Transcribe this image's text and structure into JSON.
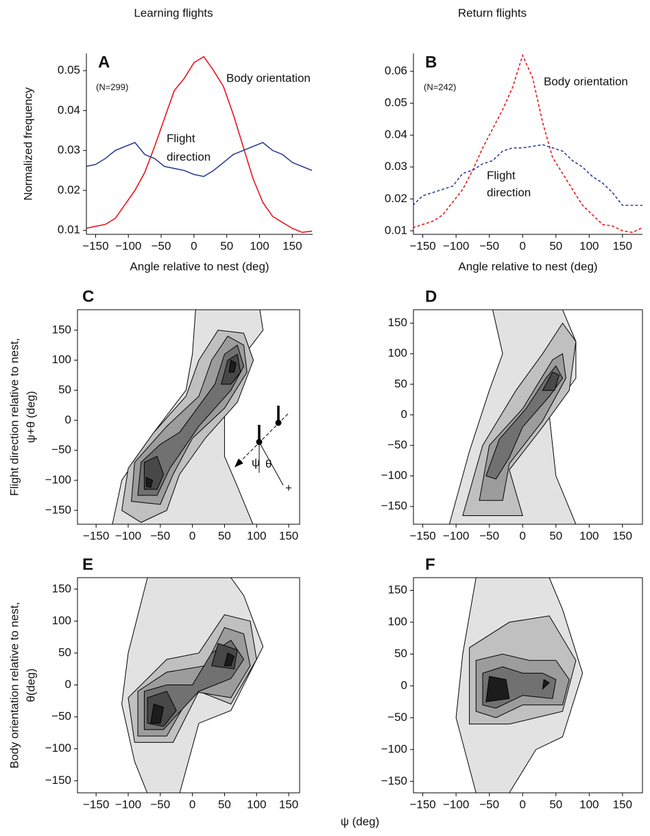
{
  "figure": {
    "column_titles": [
      "Learning flights",
      "Return flights"
    ],
    "xlabel": "ψ (deg)"
  },
  "chart_data": [
    {
      "type": "line",
      "panel": "A",
      "annotations": [
        "(N=299)",
        "Body orientation",
        "Flight",
        "direction"
      ],
      "xlabel": "Angle relative to nest (deg)",
      "ylabel": [
        "Normalized frequency"
      ],
      "dashed": false,
      "x": [
        -165,
        -150,
        -135,
        -120,
        -105,
        -90,
        -75,
        -60,
        -45,
        -30,
        -15,
        0,
        15,
        30,
        45,
        60,
        75,
        90,
        105,
        120,
        135,
        150,
        165,
        180
      ],
      "series": [
        {
          "name": "Body orientation",
          "color": "#e8141c",
          "values": [
            0.0105,
            0.011,
            0.0115,
            0.013,
            0.0165,
            0.02,
            0.0245,
            0.031,
            0.038,
            0.045,
            0.048,
            0.052,
            0.0535,
            0.05,
            0.046,
            0.039,
            0.031,
            0.023,
            0.017,
            0.0135,
            0.012,
            0.0105,
            0.0095,
            0.0098
          ]
        },
        {
          "name": "Flight direction",
          "color": "#2b3f96",
          "values": [
            0.026,
            0.0265,
            0.028,
            0.03,
            0.031,
            0.032,
            0.029,
            0.028,
            0.026,
            0.0255,
            0.025,
            0.024,
            0.0235,
            0.025,
            0.027,
            0.029,
            0.03,
            0.031,
            0.032,
            0.03,
            0.029,
            0.027,
            0.026,
            0.025
          ]
        }
      ],
      "xlim": [
        -164,
        181
      ],
      "ylim": [
        0.009,
        0.0543
      ],
      "xticks": [
        {
          "value": -150,
          "label": "−150"
        },
        {
          "value": -100,
          "label": "−100"
        },
        {
          "value": -50,
          "label": "−50"
        },
        0,
        50,
        100,
        150
      ],
      "yticks": [
        0.01,
        0.02,
        0.03,
        0.04,
        0.05
      ]
    },
    {
      "type": "line",
      "panel": "B",
      "annotations": [
        "(N=242)",
        "Body orientation",
        "Flight",
        "direction"
      ],
      "xlabel": "Angle relative to nest (deg)",
      "dashed": true,
      "x": [
        -165,
        -150,
        -135,
        -120,
        -105,
        -90,
        -75,
        -60,
        -45,
        -30,
        -15,
        0,
        15,
        30,
        45,
        60,
        75,
        90,
        105,
        120,
        135,
        150,
        165,
        180
      ],
      "series": [
        {
          "name": "Body orientation",
          "color": "#e8141c",
          "values": [
            0.011,
            0.012,
            0.013,
            0.015,
            0.019,
            0.023,
            0.029,
            0.036,
            0.042,
            0.048,
            0.055,
            0.065,
            0.058,
            0.044,
            0.033,
            0.028,
            0.023,
            0.018,
            0.015,
            0.012,
            0.0115,
            0.01,
            0.0095,
            0.011
          ]
        },
        {
          "name": "Flight direction",
          "color": "#2b3f96",
          "values": [
            0.018,
            0.021,
            0.022,
            0.023,
            0.024,
            0.028,
            0.029,
            0.031,
            0.032,
            0.035,
            0.036,
            0.036,
            0.0365,
            0.037,
            0.036,
            0.035,
            0.032,
            0.03,
            0.027,
            0.025,
            0.022,
            0.018,
            0.018,
            0.018
          ]
        }
      ],
      "xlim": [
        -164,
        180
      ],
      "ylim": [
        0.0089,
        0.0656
      ],
      "xticks": [
        {
          "value": -150,
          "label": "−150"
        },
        {
          "value": -100,
          "label": "−100"
        },
        {
          "value": -50,
          "label": "−50"
        },
        0,
        50,
        100,
        150
      ],
      "yticks": [
        0.01,
        0.02,
        0.03,
        0.04,
        0.05,
        0.06
      ]
    },
    {
      "type": "contour",
      "panel": "C",
      "annotations": [
        "ψ",
        "θ",
        "+"
      ],
      "ylabel": [
        "Flight direction relative to nest,",
        "ψ+θ (deg)"
      ],
      "contours": [
        {
          "color": "#e2e2e2",
          "x": [
            -125,
            -110,
            -60,
            -10,
            0,
            5,
            105,
            110,
            60,
            50,
            50,
            70,
            95
          ],
          "y": [
            -175,
            -100,
            -20,
            50,
            110,
            184,
            184,
            150,
            80,
            30,
            -60,
            -110,
            -175
          ]
        },
        {
          "color": "#c0c0c0",
          "x": [
            -110,
            -100,
            -60,
            -10,
            10,
            40,
            80,
            95,
            70,
            20,
            -20,
            -40,
            -80
          ],
          "y": [
            -150,
            -80,
            -20,
            40,
            100,
            150,
            145,
            100,
            30,
            -30,
            -90,
            -150,
            -170
          ]
        },
        {
          "color": "#9c9c9c",
          "x": [
            -95,
            -90,
            -40,
            10,
            30,
            55,
            80,
            85,
            50,
            0,
            -30,
            -50
          ],
          "y": [
            -135,
            -70,
            -10,
            40,
            100,
            140,
            125,
            80,
            20,
            -30,
            -90,
            -140
          ]
        },
        {
          "color": "#717171",
          "x": [
            -85,
            -80,
            -50,
            -20,
            35,
            50,
            70,
            80,
            60,
            10,
            -35,
            -55
          ],
          "y": [
            -125,
            -70,
            -40,
            -20,
            60,
            110,
            125,
            90,
            50,
            -10,
            -80,
            -125
          ]
        },
        {
          "color": "#484848",
          "x": [
            -75,
            -75,
            -55,
            -45,
            -55
          ],
          "y": [
            -115,
            -70,
            -60,
            -90,
            -115
          ]
        },
        {
          "color": "#484848",
          "x": [
            45,
            55,
            70,
            75,
            60
          ],
          "y": [
            60,
            100,
            110,
            80,
            60
          ]
        },
        {
          "color": "#1c1c1c",
          "x": [
            -72,
            -72,
            -62,
            -65
          ],
          "y": [
            -110,
            -95,
            -100,
            -112
          ]
        },
        {
          "color": "#1c1c1c",
          "x": [
            57,
            60,
            68,
            65
          ],
          "y": [
            80,
            100,
            95,
            80
          ]
        }
      ],
      "xlim": [
        -179,
        167
      ],
      "ylim": [
        -173,
        184
      ],
      "xticks": [
        {
          "value": -150,
          "label": "−150"
        },
        {
          "value": -100,
          "label": "−100"
        },
        {
          "value": -50,
          "label": "−50"
        },
        0,
        50,
        100,
        150
      ],
      "yticks": [
        {
          "value": -150,
          "label": "−150"
        },
        {
          "value": -100,
          "label": "−100"
        },
        {
          "value": -50,
          "label": "−50"
        },
        0,
        50,
        100,
        150
      ]
    },
    {
      "type": "contour",
      "panel": "D",
      "contours": [
        {
          "color": "#e2e2e2",
          "x": [
            -110,
            -80,
            -50,
            -30,
            -45,
            60,
            80,
            80,
            40,
            50,
            80
          ],
          "y": [
            -179,
            -60,
            40,
            100,
            172,
            172,
            120,
            60,
            0,
            -100,
            -179
          ]
        },
        {
          "color": "#c0c0c0",
          "x": [
            -90,
            -60,
            -10,
            30,
            60,
            80,
            70,
            30,
            -20,
            0
          ],
          "y": [
            -165,
            -50,
            40,
            100,
            150,
            120,
            40,
            -20,
            -90,
            -165
          ]
        },
        {
          "color": "#9c9c9c",
          "x": [
            -65,
            -50,
            0,
            45,
            60,
            65,
            30,
            -20,
            -30
          ],
          "y": [
            -140,
            -50,
            10,
            90,
            100,
            60,
            -10,
            -80,
            -140
          ]
        },
        {
          "color": "#717171",
          "x": [
            -55,
            -35,
            5,
            35,
            50,
            60,
            40,
            0,
            -20,
            -40
          ],
          "y": [
            -100,
            -40,
            10,
            60,
            80,
            60,
            30,
            -20,
            -70,
            -105
          ]
        },
        {
          "color": "#484848",
          "x": [
            30,
            45,
            55,
            48
          ],
          "y": [
            40,
            70,
            65,
            40
          ]
        }
      ],
      "xlim": [
        -164,
        180
      ],
      "ylim": [
        -179,
        172
      ],
      "xticks": [
        {
          "value": -150,
          "label": "−150"
        },
        {
          "value": -100,
          "label": "−100"
        },
        {
          "value": -50,
          "label": "−50"
        },
        0,
        50,
        100,
        150
      ],
      "yticks": [
        {
          "value": -150,
          "label": "−150"
        },
        {
          "value": -100,
          "label": "−100"
        },
        {
          "value": -50,
          "label": "−50"
        },
        0,
        50,
        100,
        150
      ]
    },
    {
      "type": "contour",
      "panel": "E",
      "ylabel": [
        "Body orientation relative to nest,",
        "θ(deg)"
      ],
      "contours": [
        {
          "color": "#e2e2e2",
          "x": [
            -70,
            -100,
            -110,
            -90,
            -70,
            -20,
            10,
            60,
            110,
            80,
            60
          ],
          "y": [
            168,
            50,
            -30,
            -120,
            -170,
            -170,
            -60,
            -40,
            60,
            140,
            168
          ]
        },
        {
          "color": "#c0c0c0",
          "x": [
            -90,
            -100,
            -40,
            10,
            50,
            90,
            100,
            60,
            10,
            -30
          ],
          "y": [
            -90,
            -20,
            40,
            50,
            110,
            100,
            40,
            -30,
            -10,
            -90
          ]
        },
        {
          "color": "#9c9c9c",
          "x": [
            -85,
            -85,
            -40,
            20,
            50,
            80,
            90,
            60,
            0,
            -40
          ],
          "y": [
            -80,
            -10,
            20,
            30,
            90,
            80,
            30,
            -20,
            -10,
            -80
          ]
        },
        {
          "color": "#717171",
          "x": [
            -75,
            -75,
            -40,
            0,
            30,
            60,
            80,
            60,
            10,
            -45
          ],
          "y": [
            -70,
            -10,
            0,
            0,
            50,
            70,
            40,
            10,
            -10,
            -70
          ]
        },
        {
          "color": "#484848",
          "x": [
            -70,
            -70,
            -40,
            -25,
            -45
          ],
          "y": [
            -60,
            -20,
            -10,
            -40,
            -65
          ]
        },
        {
          "color": "#484848",
          "x": [
            30,
            40,
            70,
            65
          ],
          "y": [
            30,
            65,
            55,
            25
          ]
        },
        {
          "color": "#1c1c1c",
          "x": [
            -65,
            -60,
            -45,
            -50
          ],
          "y": [
            -60,
            -30,
            -35,
            -60
          ]
        },
        {
          "color": "#1c1c1c",
          "x": [
            50,
            55,
            65,
            60
          ],
          "y": [
            30,
            50,
            45,
            30
          ]
        }
      ],
      "xlim": [
        -179,
        167
      ],
      "ylim": [
        -169,
        168
      ],
      "xticks": [
        {
          "value": -150,
          "label": "−150"
        },
        {
          "value": -100,
          "label": "−100"
        },
        {
          "value": -50,
          "label": "−50"
        },
        0,
        50,
        100,
        150
      ],
      "yticks": [
        {
          "value": -150,
          "label": "−150"
        },
        {
          "value": -100,
          "label": "−100"
        },
        {
          "value": -50,
          "label": "−50"
        },
        0,
        50,
        100,
        150
      ]
    },
    {
      "type": "contour",
      "panel": "F",
      "contours": [
        {
          "color": "#e2e2e2",
          "x": [
            -70,
            -90,
            -100,
            -70,
            -20,
            20,
            60,
            90,
            60,
            40
          ],
          "y": [
            170,
            50,
            -50,
            -168,
            -168,
            -100,
            -80,
            20,
            120,
            170
          ]
        },
        {
          "color": "#c0c0c0",
          "x": [
            -80,
            -80,
            -20,
            40,
            80,
            60,
            20,
            -20
          ],
          "y": [
            -60,
            60,
            100,
            110,
            40,
            -40,
            -50,
            -60
          ]
        },
        {
          "color": "#9c9c9c",
          "x": [
            -70,
            -70,
            -30,
            10,
            50,
            70,
            60,
            0,
            -40
          ],
          "y": [
            -40,
            40,
            50,
            40,
            40,
            10,
            -30,
            -30,
            -50
          ]
        },
        {
          "color": "#717171",
          "x": [
            -60,
            -60,
            -30,
            0,
            30,
            50,
            45,
            0,
            -40
          ],
          "y": [
            -30,
            20,
            30,
            20,
            20,
            10,
            -20,
            -15,
            -35
          ]
        },
        {
          "color": "#1c1c1c",
          "x": [
            -55,
            -50,
            -25,
            -20
          ],
          "y": [
            -25,
            15,
            10,
            -20
          ]
        },
        {
          "color": "#1c1c1c",
          "x": [
            30,
            32,
            40
          ],
          "y": [
            -5,
            10,
            5
          ]
        }
      ],
      "xlim": [
        -164,
        180
      ],
      "ylim": [
        -168,
        170
      ],
      "xticks": [
        {
          "value": -150,
          "label": "−150"
        },
        {
          "value": -100,
          "label": "−100"
        },
        {
          "value": -50,
          "label": "−50"
        },
        0,
        50,
        100,
        150
      ],
      "yticks": [
        {
          "value": -150,
          "label": "−150"
        },
        {
          "value": -100,
          "label": "−100"
        },
        {
          "value": -50,
          "label": "−50"
        },
        0,
        50,
        100,
        150
      ]
    }
  ]
}
